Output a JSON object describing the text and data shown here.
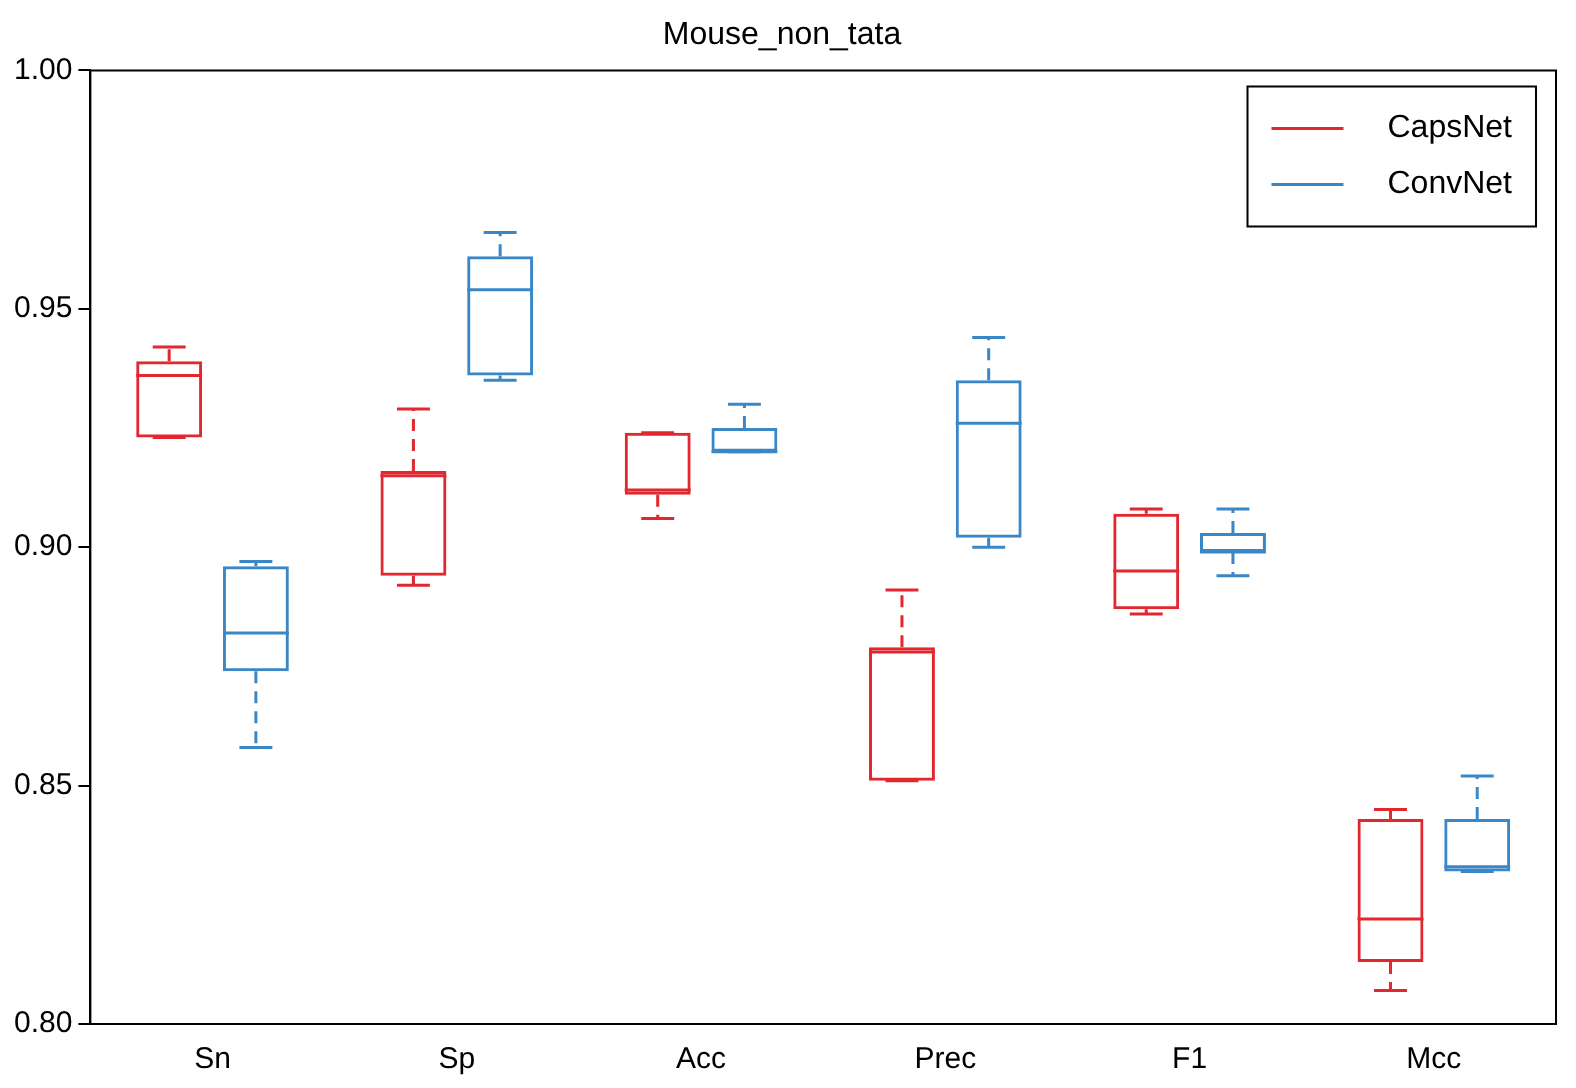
{
  "chart_data": {
    "type": "box",
    "title": "Mouse_non_tata",
    "categories": [
      "Sn",
      "Sp",
      "Acc",
      "Prec",
      "F1",
      "Mcc"
    ],
    "series": [
      {
        "name": "CapsNet",
        "color": "#e3272f",
        "boxes": [
          {
            "low": 0.923,
            "q1": 0.923,
            "median": 0.936,
            "q3": 0.939,
            "high": 0.942
          },
          {
            "low": 0.892,
            "q1": 0.894,
            "median": 0.915,
            "q3": 0.916,
            "high": 0.929
          },
          {
            "low": 0.906,
            "q1": 0.911,
            "median": 0.912,
            "q3": 0.924,
            "high": 0.924
          },
          {
            "low": 0.851,
            "q1": 0.851,
            "median": 0.878,
            "q3": 0.879,
            "high": 0.891
          },
          {
            "low": 0.886,
            "q1": 0.887,
            "median": 0.895,
            "q3": 0.907,
            "high": 0.908
          },
          {
            "low": 0.807,
            "q1": 0.813,
            "median": 0.822,
            "q3": 0.843,
            "high": 0.845
          }
        ]
      },
      {
        "name": "ConvNet",
        "color": "#3a87c8",
        "boxes": [
          {
            "low": 0.858,
            "q1": 0.874,
            "median": 0.882,
            "q3": 0.896,
            "high": 0.897
          },
          {
            "low": 0.935,
            "q1": 0.936,
            "median": 0.954,
            "q3": 0.961,
            "high": 0.966
          },
          {
            "low": 0.92,
            "q1": 0.92,
            "median": 0.92,
            "q3": 0.925,
            "high": 0.93
          },
          {
            "low": 0.9,
            "q1": 0.902,
            "median": 0.926,
            "q3": 0.935,
            "high": 0.944
          },
          {
            "low": 0.894,
            "q1": 0.899,
            "median": 0.899,
            "q3": 0.903,
            "high": 0.908
          },
          {
            "low": 0.832,
            "q1": 0.832,
            "median": 0.833,
            "q3": 0.843,
            "high": 0.852
          }
        ]
      }
    ],
    "ylim": [
      0.8,
      1.0
    ],
    "yticks": [
      {
        "value": 0.8,
        "label": "0.80"
      },
      {
        "value": 0.85,
        "label": "0.85"
      },
      {
        "value": 0.9,
        "label": "0.90"
      },
      {
        "value": 0.95,
        "label": "0.95"
      },
      {
        "value": 1.0,
        "label": "1.00"
      }
    ],
    "grid": false,
    "legend": "top right"
  }
}
